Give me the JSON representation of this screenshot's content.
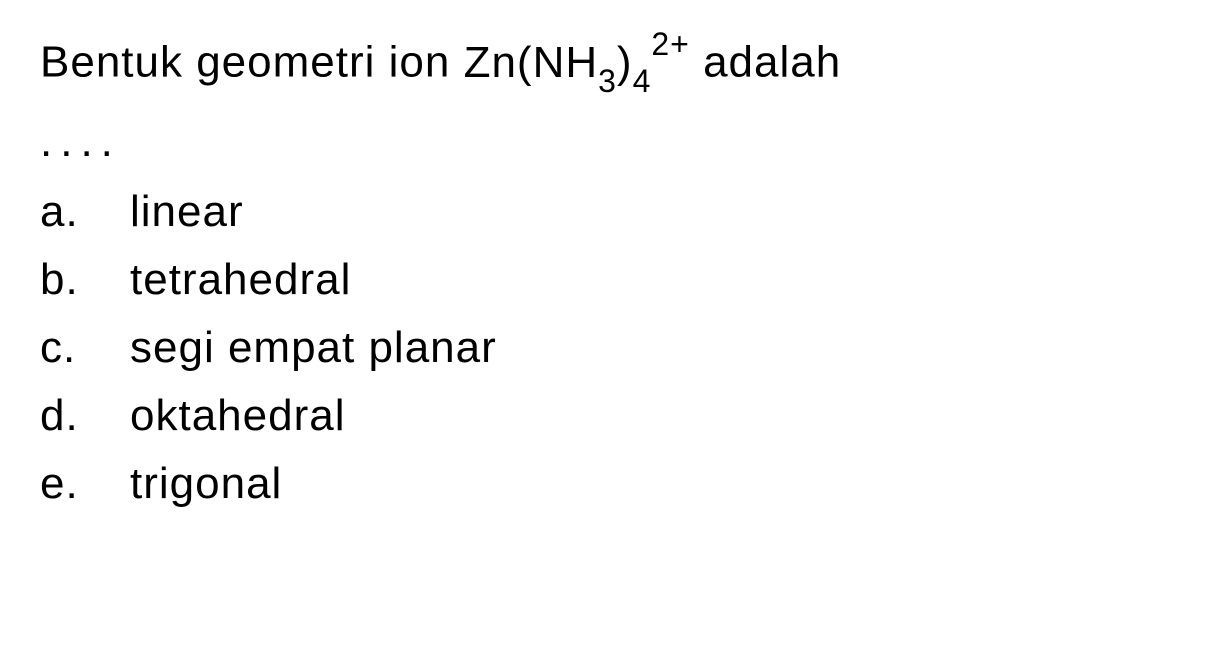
{
  "question": {
    "prefix": "Bentuk geometri ion ",
    "formula_main": "Zn(NH",
    "formula_sub1": "3",
    "formula_close": ")",
    "formula_sub2": "4",
    "formula_sup": "2+",
    "suffix": " adalah",
    "dots": "...."
  },
  "options": [
    {
      "letter": "a.",
      "text": "linear"
    },
    {
      "letter": "b.",
      "text": "tetrahedral"
    },
    {
      "letter": "c.",
      "text": "segi empat planar"
    },
    {
      "letter": "d.",
      "text": "oktahedral"
    },
    {
      "letter": "e.",
      "text": "trigonal"
    }
  ],
  "style": {
    "background_color": "#ffffff",
    "text_color": "#000000",
    "font_size_main": 44,
    "font_size_subsup": 32,
    "font_family": "Arial, Helvetica, sans-serif"
  }
}
